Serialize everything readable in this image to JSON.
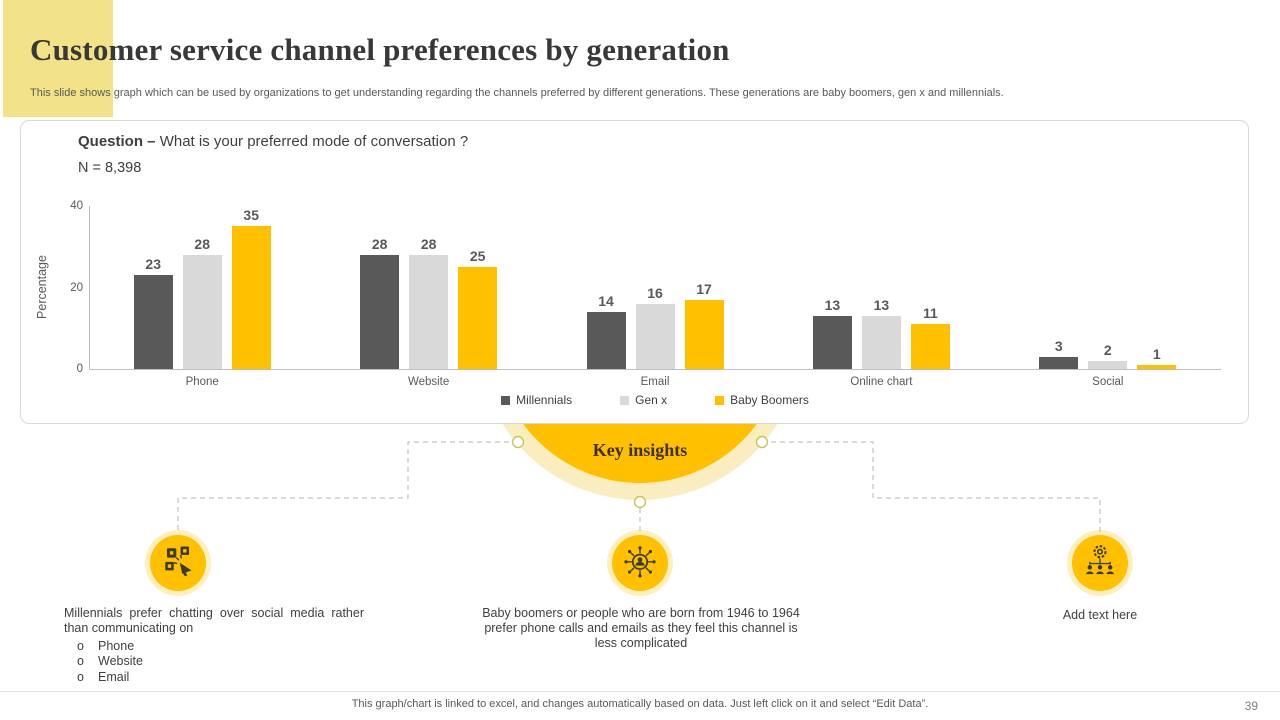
{
  "colors": {
    "accent_yellow": "#ffc000",
    "bar_dark": "#595959",
    "bar_light": "#d9d9d9",
    "title_accent_rect": "#f2e288",
    "halo_yellow": "#faeec1"
  },
  "header": {
    "title": "Customer service channel preferences by generation",
    "subtitle": "This slide shows graph which can be used by organizations to get understanding regarding the channels preferred by different generations. These generations are baby boomers, gen x and millennials."
  },
  "chart_panel": {
    "question_label": "Question –",
    "question_text": "What is your preferred mode of conversation ?",
    "sample": "N = 8,398"
  },
  "chart_data": {
    "type": "bar",
    "categories": [
      "Phone",
      "Website",
      "Email",
      "Online chart",
      "Social"
    ],
    "series": [
      {
        "name": "Millennials",
        "color": "#595959",
        "values": [
          23,
          28,
          14,
          13,
          3
        ]
      },
      {
        "name": "Gen x",
        "color": "#d9d9d9",
        "values": [
          28,
          28,
          16,
          13,
          2
        ]
      },
      {
        "name": "Baby Boomers",
        "color": "#ffc000",
        "values": [
          35,
          25,
          17,
          11,
          1
        ]
      }
    ],
    "title": "",
    "xlabel": "",
    "ylabel": "Percentage",
    "yticks": [
      40,
      20,
      0
    ],
    "ylim": [
      0,
      40
    ],
    "grid": false,
    "legend_position": "bottom"
  },
  "insights": {
    "title": "Key insights",
    "items": [
      {
        "icon": "social-media-megaphone-icon",
        "text": "Millennials prefer chatting over social media rather than communicating on",
        "bullets": [
          "Phone",
          "Website",
          "Email"
        ]
      },
      {
        "icon": "customer-network-icon",
        "text": "Baby boomers or people who are born from 1946 to 1964 prefer phone calls and emails as they feel this channel is less complicated",
        "bullets": []
      },
      {
        "icon": "team-management-icon",
        "text": "Add text here",
        "bullets": []
      }
    ]
  },
  "footer": {
    "note": "This graph/chart is linked to excel, and changes automatically based on data. Just left click on it and select “Edit Data”.",
    "page_number": "39"
  }
}
